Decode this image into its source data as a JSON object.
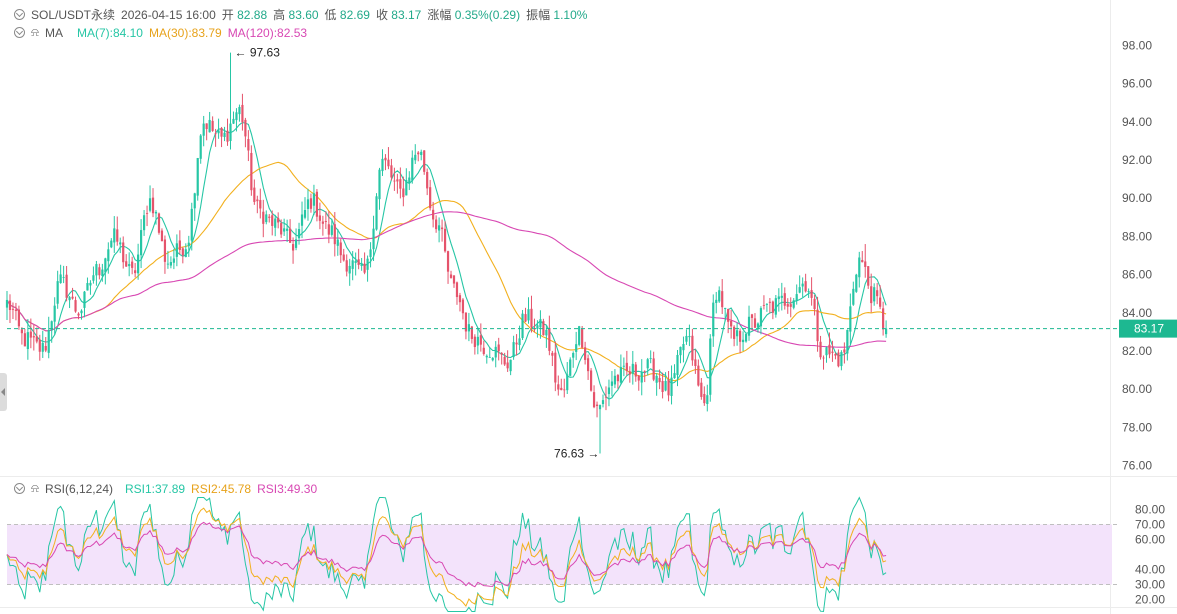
{
  "header": {
    "symbol": "SOL/USDT永续",
    "datetime": "2026-04-15 16:00",
    "open_label": "开",
    "open": "82.88",
    "high_label": "高",
    "high": "83.60",
    "low_label": "低",
    "low": "82.69",
    "close_label": "收",
    "close": "83.17",
    "change_label": "涨幅",
    "change": "0.35%(0.29)",
    "amplitude_label": "振幅",
    "amplitude": "1.10%"
  },
  "ma_legend": {
    "label": "MA",
    "ma7": "MA(7):84.10",
    "ma30": "MA(30):83.79",
    "ma120": "MA(120):82.53"
  },
  "rsi_legend": {
    "label": "RSI(6,12,24)",
    "rsi1": "RSI1:37.89",
    "rsi2": "RSI2:45.78",
    "rsi3": "RSI3:49.30"
  },
  "colors": {
    "up": "#26c6a5",
    "down": "#e5536b",
    "ma7": "#26c6a5",
    "ma30": "#f2b01e",
    "ma120": "#d848b3",
    "rsi_band": "#f3e3fb",
    "price_tag": "#1db891"
  },
  "chart_data": [
    {
      "type": "candlestick",
      "title": "SOL/USDT永续",
      "interval_start": "2026-04-15 16:00",
      "y_ticks": [
        "98.00",
        "96.00",
        "94.00",
        "92.00",
        "90.00",
        "88.00",
        "86.00",
        "84.00",
        "82.00",
        "80.00",
        "78.00",
        "76.00"
      ],
      "ylim": [
        75.2,
        99.6
      ],
      "grid": false,
      "last_price": "83.17",
      "max_marker": "97.63",
      "min_marker": "76.63",
      "anchors": [
        [
          0,
          84.5
        ],
        [
          6,
          82.6
        ],
        [
          12,
          82.1
        ],
        [
          18,
          85.6
        ],
        [
          24,
          84.1
        ],
        [
          30,
          86.2
        ],
        [
          36,
          87.9
        ],
        [
          42,
          86.0
        ],
        [
          48,
          89.9
        ],
        [
          54,
          86.7
        ],
        [
          60,
          87.6
        ],
        [
          66,
          94.0
        ],
        [
          72,
          93.1
        ],
        [
          78,
          94.6
        ],
        [
          84,
          89.4
        ],
        [
          90,
          88.6
        ],
        [
          96,
          87.6
        ],
        [
          102,
          89.9
        ],
        [
          108,
          88.3
        ],
        [
          114,
          86.7
        ],
        [
          120,
          86.0
        ],
        [
          126,
          91.9
        ],
        [
          132,
          90.3
        ],
        [
          138,
          92.5
        ],
        [
          144,
          88.8
        ],
        [
          150,
          85.2
        ],
        [
          156,
          82.8
        ],
        [
          162,
          82.1
        ],
        [
          168,
          81.4
        ],
        [
          174,
          83.7
        ],
        [
          180,
          83.1
        ],
        [
          186,
          79.7
        ],
        [
          192,
          83.0
        ],
        [
          198,
          78.9
        ],
        [
          204,
          80.6
        ],
        [
          210,
          80.9
        ],
        [
          216,
          81.1
        ],
        [
          222,
          79.9
        ],
        [
          228,
          82.6
        ],
        [
          234,
          79.2
        ],
        [
          238,
          85.2
        ],
        [
          244,
          82.6
        ],
        [
          250,
          83.4
        ],
        [
          256,
          84.3
        ],
        [
          262,
          84.7
        ],
        [
          268,
          85.6
        ],
        [
          274,
          81.9
        ],
        [
          280,
          81.6
        ],
        [
          286,
          86.8
        ],
        [
          291,
          84.8
        ],
        [
          295,
          83.17
        ]
      ],
      "extremes": [
        [
          75,
          97.63
        ],
        [
          199,
          76.63
        ],
        [
          288,
          87.6
        ]
      ]
    },
    {
      "type": "line",
      "title": "RSI(6,12,24)",
      "y_ticks": [
        "80.00",
        "70.00",
        "60.00",
        "40.00",
        "30.00",
        "20.00"
      ],
      "ylim": [
        20,
        80
      ],
      "band": [
        30,
        70
      ],
      "series": [
        {
          "name": "RSI1",
          "last": 37.89
        },
        {
          "name": "RSI2",
          "last": 45.78
        },
        {
          "name": "RSI3",
          "last": 49.3
        }
      ]
    }
  ]
}
